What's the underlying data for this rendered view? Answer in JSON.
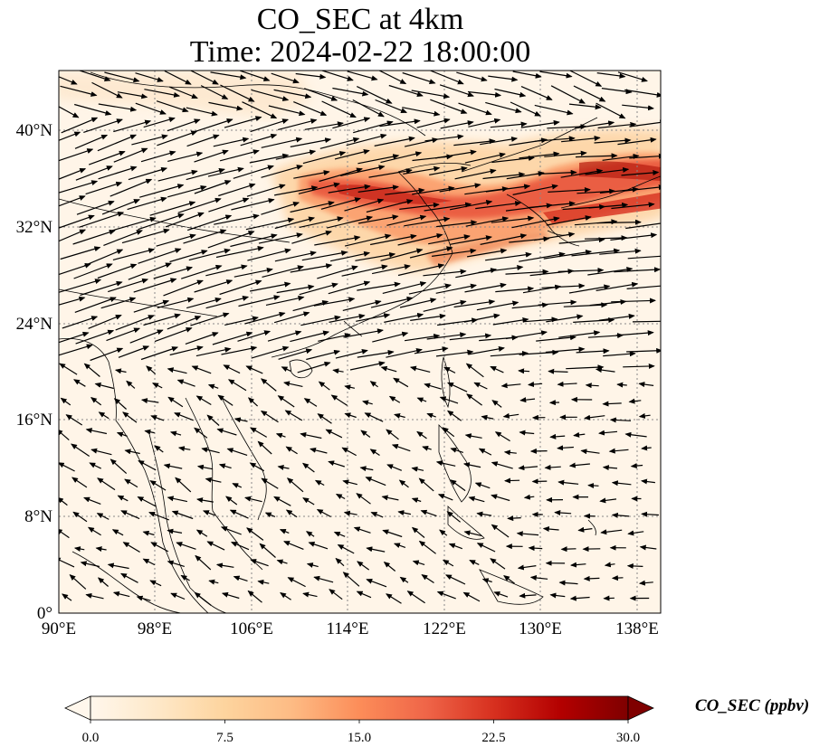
{
  "title": {
    "line1": "CO_SEC at 4km",
    "line2": "Time: 2024-02-22 18:00:00"
  },
  "map": {
    "lon_range": [
      90,
      140
    ],
    "lat_range": [
      0,
      45
    ],
    "lon_ticks": [
      "90°E",
      "98°E",
      "106°E",
      "114°E",
      "122°E",
      "130°E",
      "138°E"
    ],
    "lat_ticks": [
      "0°",
      "8°N",
      "16°N",
      "24°N",
      "32°N",
      "40°N"
    ],
    "gridlines": true,
    "field": "CO_SEC",
    "vectors": "wind at 4km"
  },
  "colorbar": {
    "label": "CO_SEC (ppbv)",
    "ticks": [
      "0.0",
      "7.5",
      "15.0",
      "22.5",
      "30.0"
    ],
    "range": [
      0,
      30
    ],
    "colormap": "OrRd",
    "extend": "both",
    "colors": [
      "#fff7ec",
      "#fee8c8",
      "#fdd49e",
      "#fdbb84",
      "#fc8d59",
      "#ef6548",
      "#d7301f",
      "#b30000",
      "#7f0000"
    ]
  }
}
